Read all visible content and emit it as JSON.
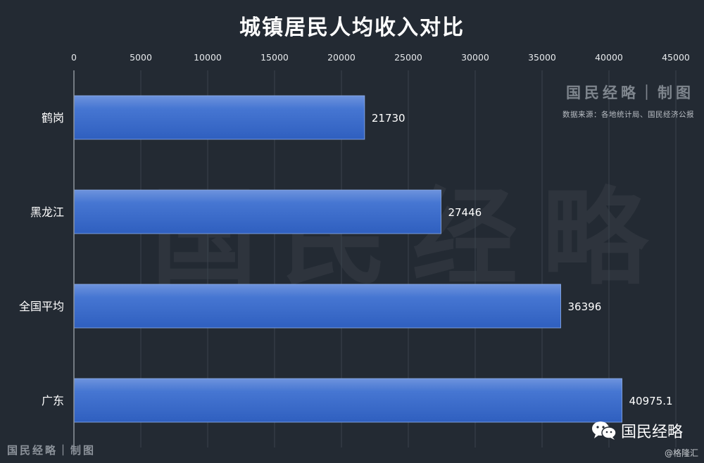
{
  "title": "城镇居民人均收入对比",
  "brand": {
    "name": "国民经略｜制图",
    "source": "数据来源：各地统计局、国民经济公报",
    "watermark": "国民经略",
    "bottom_left": "国民经略｜制图",
    "wechat_name": "国民经略",
    "credit": "@格隆汇"
  },
  "colors": {
    "background": "#232a33",
    "bar": "#3d6ecc",
    "grid": "#3b434d"
  },
  "chart_data": {
    "type": "bar",
    "orientation": "horizontal",
    "title": "城镇居民人均收入对比",
    "categories": [
      "鹤岗",
      "黑龙江",
      "全国平均",
      "广东"
    ],
    "values": [
      21730,
      27446,
      36396,
      40975.1
    ],
    "value_labels": [
      "21730",
      "27446",
      "36396",
      "40975.1"
    ],
    "xlim": [
      0,
      45000
    ],
    "x_ticks": [
      0,
      5000,
      10000,
      15000,
      20000,
      25000,
      30000,
      35000,
      40000,
      45000
    ],
    "x_tick_labels": [
      "0",
      "5000",
      "10000",
      "15000",
      "20000",
      "25000",
      "30000",
      "35000",
      "40000",
      "45000"
    ],
    "x_axis_position": "top",
    "grid": true,
    "legend": "none"
  }
}
